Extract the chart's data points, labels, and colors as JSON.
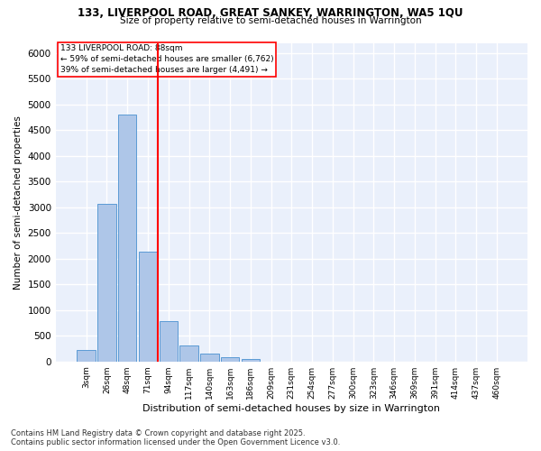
{
  "title1": "133, LIVERPOOL ROAD, GREAT SANKEY, WARRINGTON, WA5 1QU",
  "title2": "Size of property relative to semi-detached houses in Warrington",
  "xlabel": "Distribution of semi-detached houses by size in Warrington",
  "ylabel": "Number of semi-detached properties",
  "bar_labels": [
    "3sqm",
    "26sqm",
    "48sqm",
    "71sqm",
    "94sqm",
    "117sqm",
    "140sqm",
    "163sqm",
    "186sqm",
    "209sqm",
    "231sqm",
    "254sqm",
    "277sqm",
    "300sqm",
    "323sqm",
    "346sqm",
    "369sqm",
    "391sqm",
    "414sqm",
    "437sqm",
    "460sqm"
  ],
  "bar_values": [
    230,
    3060,
    4800,
    2130,
    780,
    310,
    145,
    80,
    50,
    0,
    0,
    0,
    0,
    0,
    0,
    0,
    0,
    0,
    0,
    0,
    0
  ],
  "bar_color": "#aec6e8",
  "bar_edge_color": "#5b9bd5",
  "vline_color": "red",
  "vline_pos": 3.5,
  "annotation_title": "133 LIVERPOOL ROAD: 88sqm",
  "annotation_line1": "← 59% of semi-detached houses are smaller (6,762)",
  "annotation_line2": "39% of semi-detached houses are larger (4,491) →",
  "ylim": [
    0,
    6200
  ],
  "yticks": [
    0,
    500,
    1000,
    1500,
    2000,
    2500,
    3000,
    3500,
    4000,
    4500,
    5000,
    5500,
    6000
  ],
  "bg_color": "#eaf0fb",
  "grid_color": "white",
  "footer1": "Contains HM Land Registry data © Crown copyright and database right 2025.",
  "footer2": "Contains public sector information licensed under the Open Government Licence v3.0."
}
